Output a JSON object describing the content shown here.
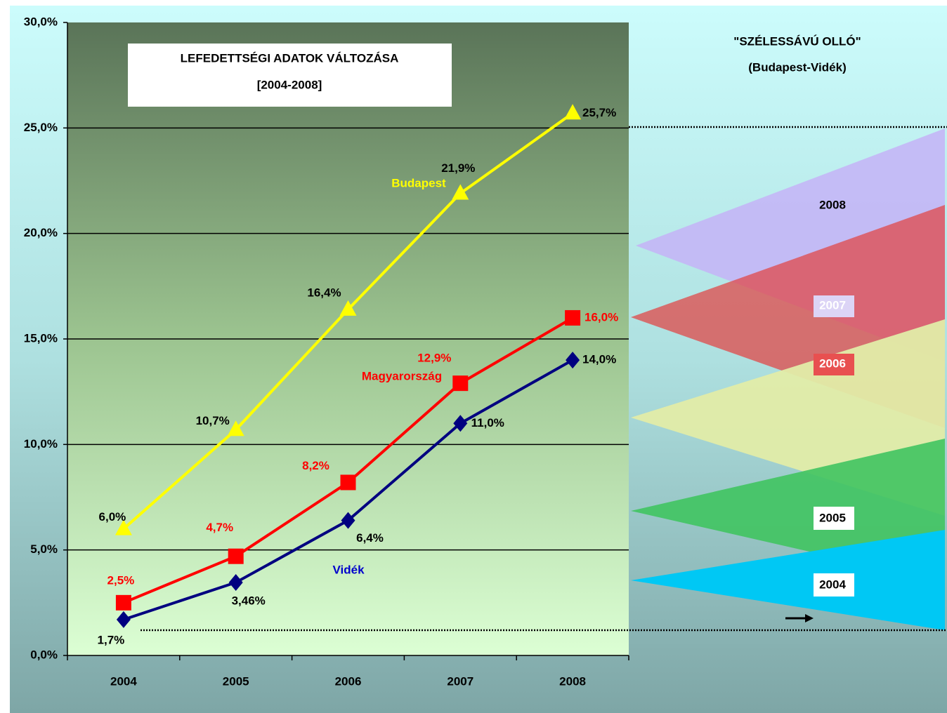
{
  "chart_data": {
    "type": "line",
    "title": "LEFEDETTSÉGI ADATOK VÁLTOZÁSA",
    "subtitle": "[2004-2008]",
    "categories": [
      "2004",
      "2005",
      "2006",
      "2007",
      "2008"
    ],
    "series": [
      {
        "name": "Budapest",
        "color": "#ffff00",
        "values": [
          6.0,
          10.7,
          16.4,
          21.9,
          25.7
        ],
        "value_labels": [
          "6,0%",
          "10,7%",
          "16,4%",
          "21,9%",
          "25,7%"
        ]
      },
      {
        "name": "Magyarország",
        "color": "#ff0000",
        "values": [
          2.5,
          4.7,
          8.2,
          12.9,
          16.0
        ],
        "value_labels": [
          "2,5%",
          "4,7%",
          "8,2%",
          "12,9%",
          "16,0%"
        ]
      },
      {
        "name": "Vidék",
        "color": "#000080",
        "values": [
          1.7,
          3.46,
          6.4,
          11.0,
          14.0
        ],
        "value_labels": [
          "1,7%",
          "3,46%",
          "6,4%",
          "11,0%",
          "14,0%"
        ]
      }
    ],
    "ylim": [
      0,
      30
    ],
    "yticks": [
      {
        "value": 0,
        "label": "0,0%"
      },
      {
        "value": 5,
        "label": "5,0%"
      },
      {
        "value": 10,
        "label": "10,0%"
      },
      {
        "value": 15,
        "label": "15,0%"
      },
      {
        "value": 20,
        "label": "20,0%"
      },
      {
        "value": 25,
        "label": "25,0%"
      },
      {
        "value": 30,
        "label": "30,0%"
      }
    ],
    "grid": true
  },
  "scissors": {
    "title": "\"SZÉLESSÁVÚ OLLÓ\"",
    "subtitle": "(Budapest-Vidék)",
    "labels": [
      "2008",
      "2007",
      "2006",
      "2005",
      "2004"
    ]
  }
}
